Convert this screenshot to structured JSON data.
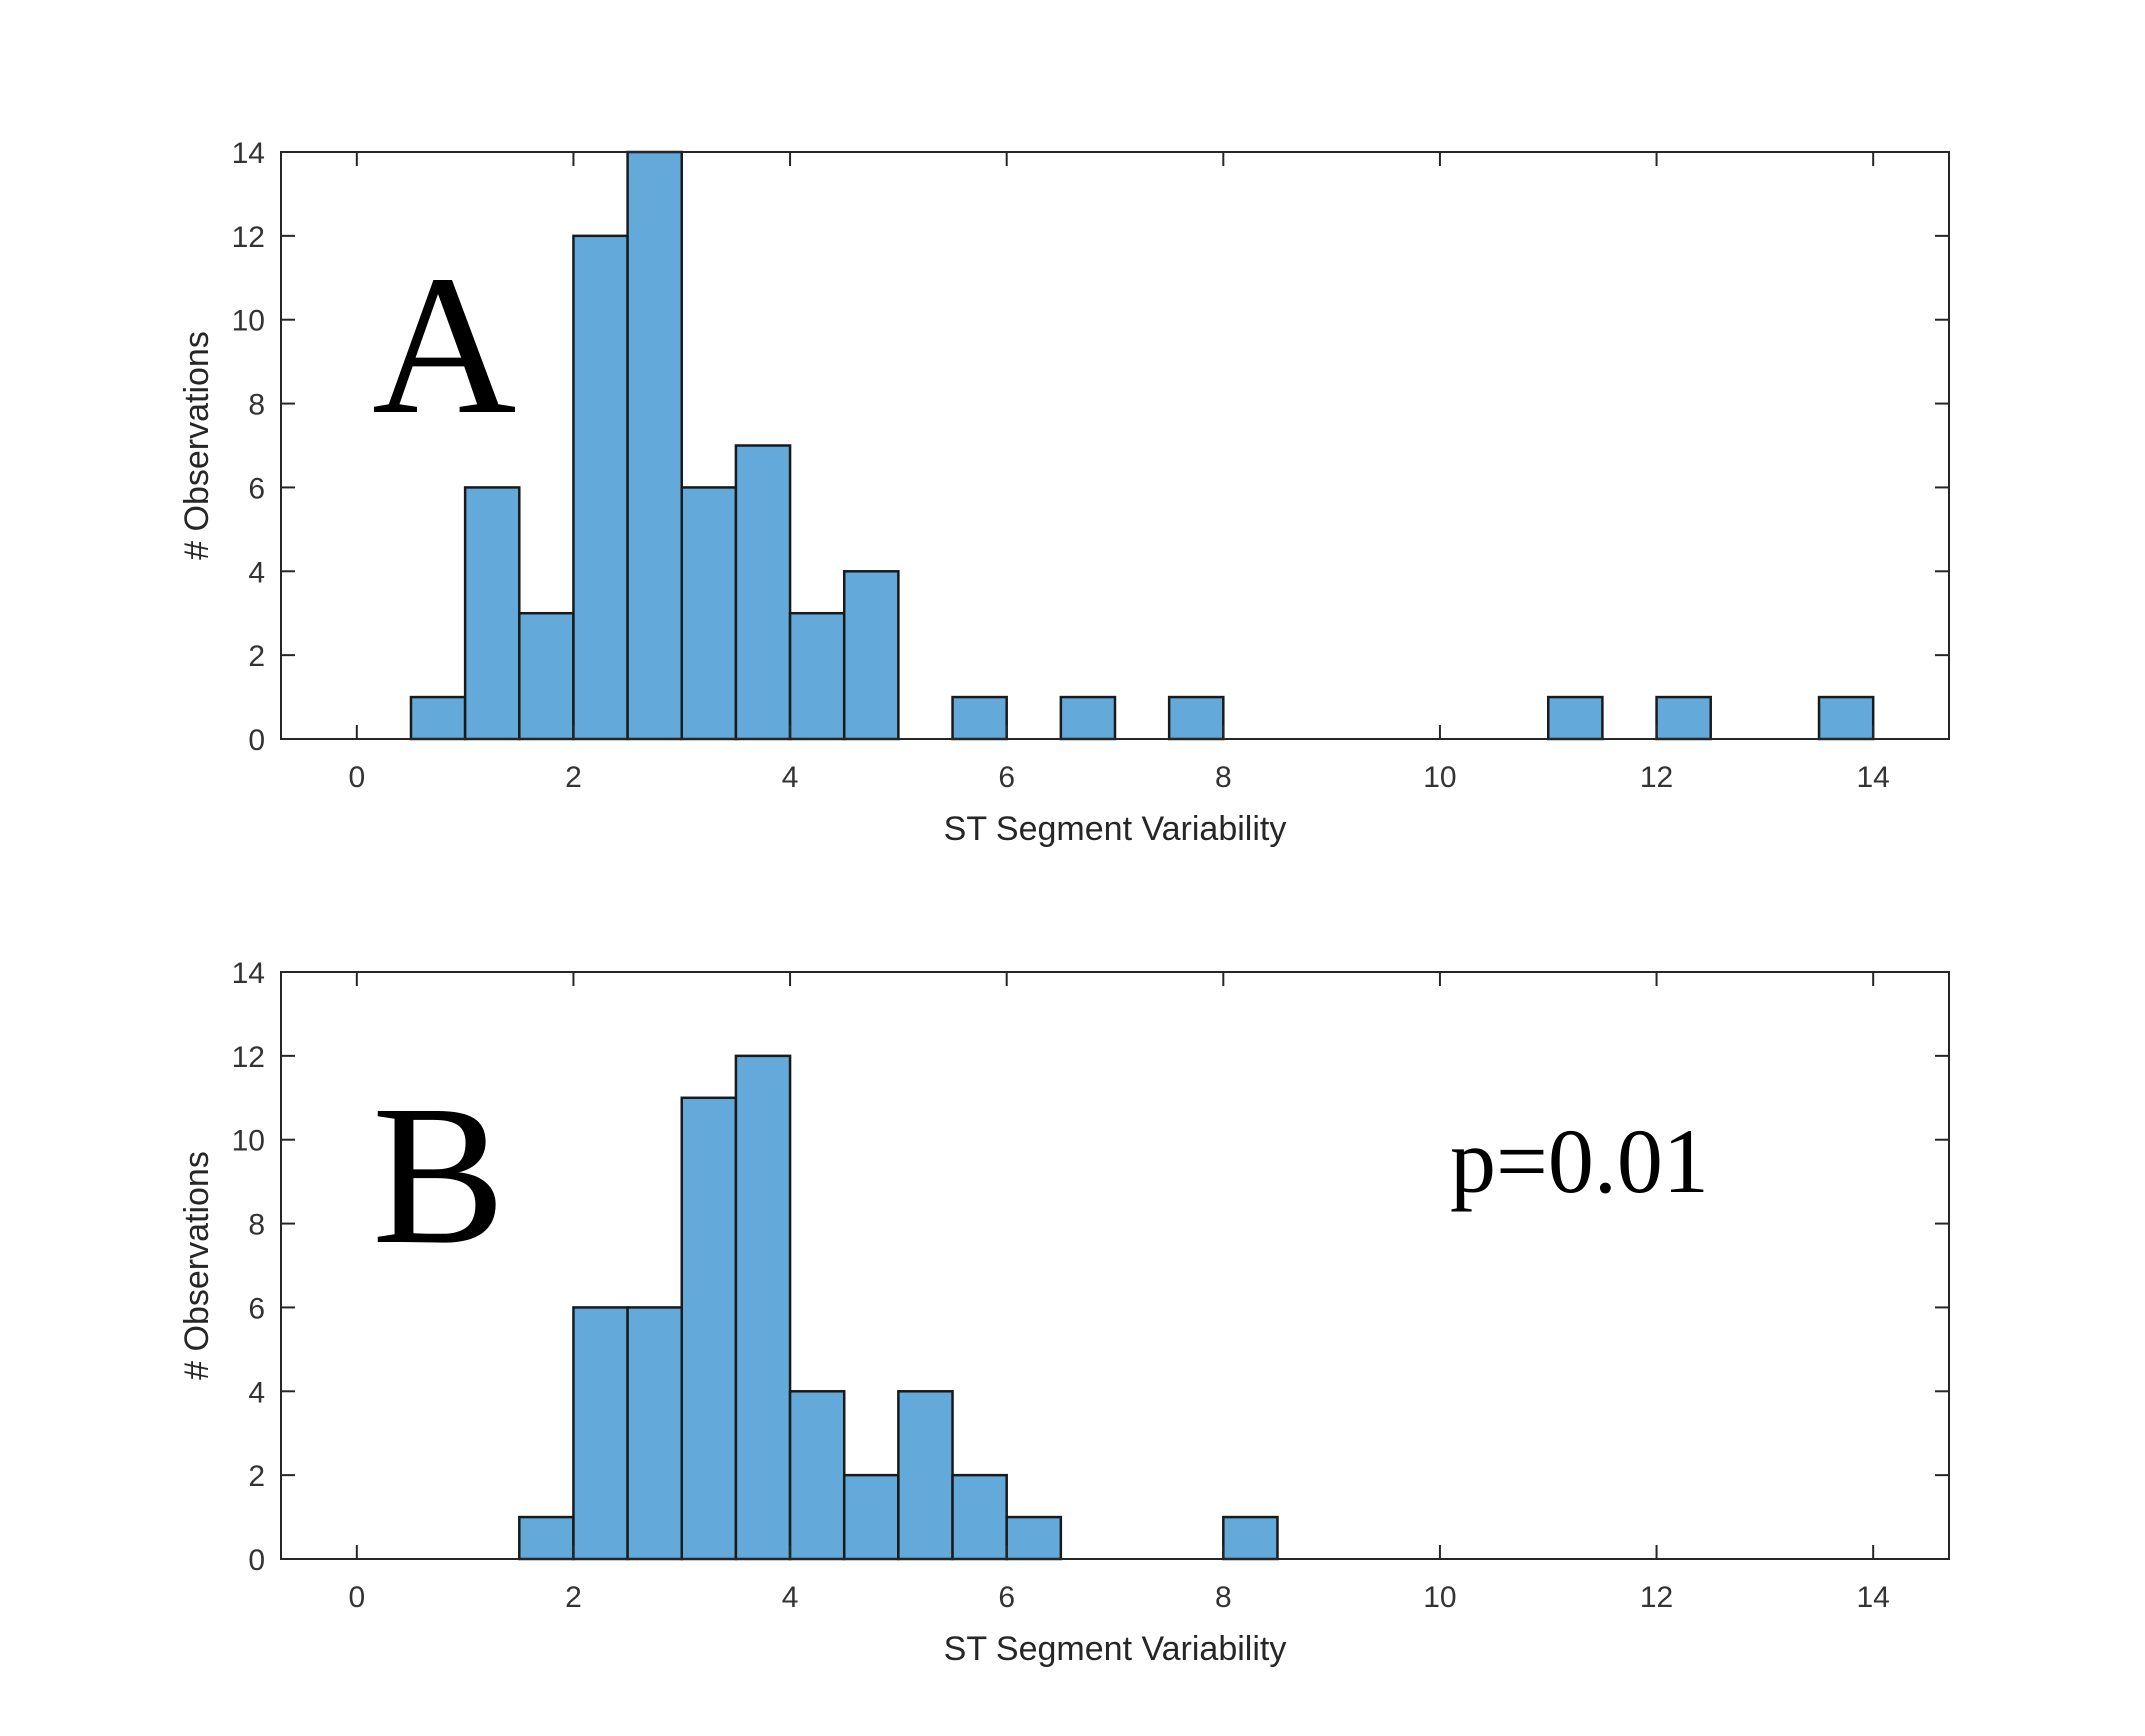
{
  "chart_data": [
    {
      "type": "bar",
      "panel_label": "A",
      "xlabel": "ST Segment Variability",
      "ylabel": "# Observations",
      "xlim": [
        -0.7,
        14.7
      ],
      "ylim": [
        0,
        14
      ],
      "xticks": [
        0,
        2,
        4,
        6,
        8,
        10,
        12,
        14
      ],
      "yticks": [
        0,
        2,
        4,
        6,
        8,
        10,
        12,
        14
      ],
      "bin_width": 0.5,
      "bins": [
        {
          "start": 0.5,
          "count": 1
        },
        {
          "start": 1.0,
          "count": 6
        },
        {
          "start": 1.5,
          "count": 3
        },
        {
          "start": 2.0,
          "count": 12
        },
        {
          "start": 2.5,
          "count": 14
        },
        {
          "start": 3.0,
          "count": 6
        },
        {
          "start": 3.5,
          "count": 7
        },
        {
          "start": 4.0,
          "count": 3
        },
        {
          "start": 4.5,
          "count": 4
        },
        {
          "start": 5.5,
          "count": 1
        },
        {
          "start": 6.5,
          "count": 1
        },
        {
          "start": 7.5,
          "count": 1
        },
        {
          "start": 11.0,
          "count": 1
        },
        {
          "start": 12.0,
          "count": 1
        },
        {
          "start": 13.5,
          "count": 1
        }
      ],
      "annotation": "",
      "bar_color": "#63a9d9",
      "edge_color": "#1a1a1a"
    },
    {
      "type": "bar",
      "panel_label": "B",
      "xlabel": "ST Segment Variability",
      "ylabel": "# Observations",
      "xlim": [
        -0.7,
        14.7
      ],
      "ylim": [
        0,
        14
      ],
      "xticks": [
        0,
        2,
        4,
        6,
        8,
        10,
        12,
        14
      ],
      "yticks": [
        0,
        2,
        4,
        6,
        8,
        10,
        12,
        14
      ],
      "bin_width": 0.5,
      "bins": [
        {
          "start": 1.5,
          "count": 1
        },
        {
          "start": 2.0,
          "count": 6
        },
        {
          "start": 2.5,
          "count": 6
        },
        {
          "start": 3.0,
          "count": 11
        },
        {
          "start": 3.5,
          "count": 12
        },
        {
          "start": 4.0,
          "count": 4
        },
        {
          "start": 4.5,
          "count": 2
        },
        {
          "start": 5.0,
          "count": 4
        },
        {
          "start": 5.5,
          "count": 2
        },
        {
          "start": 6.0,
          "count": 1
        },
        {
          "start": 8.0,
          "count": 1
        }
      ],
      "annotation": "p=0.01",
      "bar_color": "#63a9d9",
      "edge_color": "#1a1a1a"
    }
  ]
}
